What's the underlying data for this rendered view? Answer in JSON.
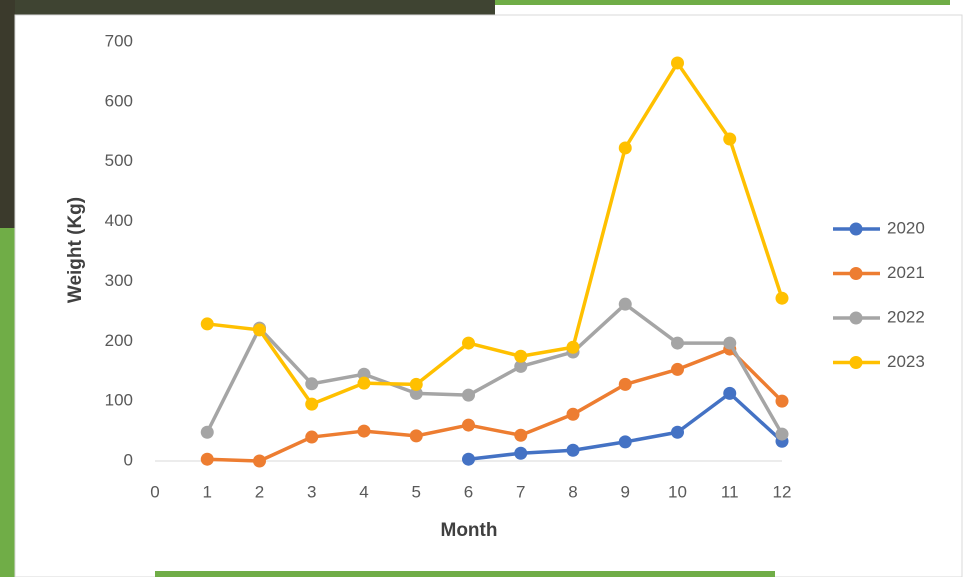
{
  "chart_data": {
    "type": "line",
    "x_label": "Month",
    "y_label": "Weight (Kg)",
    "x": [
      1,
      2,
      3,
      4,
      5,
      6,
      7,
      8,
      9,
      10,
      11,
      12
    ],
    "series": [
      {
        "name": "2020",
        "color": "#4472c4",
        "values": [
          null,
          null,
          null,
          null,
          null,
          3,
          13,
          18,
          32,
          48,
          113,
          33
        ]
      },
      {
        "name": "2021",
        "color": "#ed7d31",
        "values": [
          3,
          0,
          40,
          50,
          42,
          60,
          43,
          78,
          128,
          153,
          187,
          100
        ]
      },
      {
        "name": "2022",
        "color": "#a5a5a5",
        "values": [
          48,
          222,
          129,
          145,
          113,
          110,
          158,
          182,
          262,
          197,
          197,
          45
        ]
      },
      {
        "name": "2023",
        "color": "#ffc000",
        "values": [
          229,
          219,
          95,
          130,
          128,
          197,
          175,
          190,
          523,
          665,
          538,
          272
        ]
      }
    ],
    "xlim": [
      0,
      12
    ],
    "xticks": [
      0,
      1,
      2,
      3,
      4,
      5,
      6,
      7,
      8,
      9,
      10,
      11,
      12
    ],
    "ylim": [
      0,
      700
    ],
    "yticks": [
      0,
      100,
      200,
      300,
      400,
      500,
      600,
      700
    ],
    "grid": false,
    "legend": "right"
  }
}
